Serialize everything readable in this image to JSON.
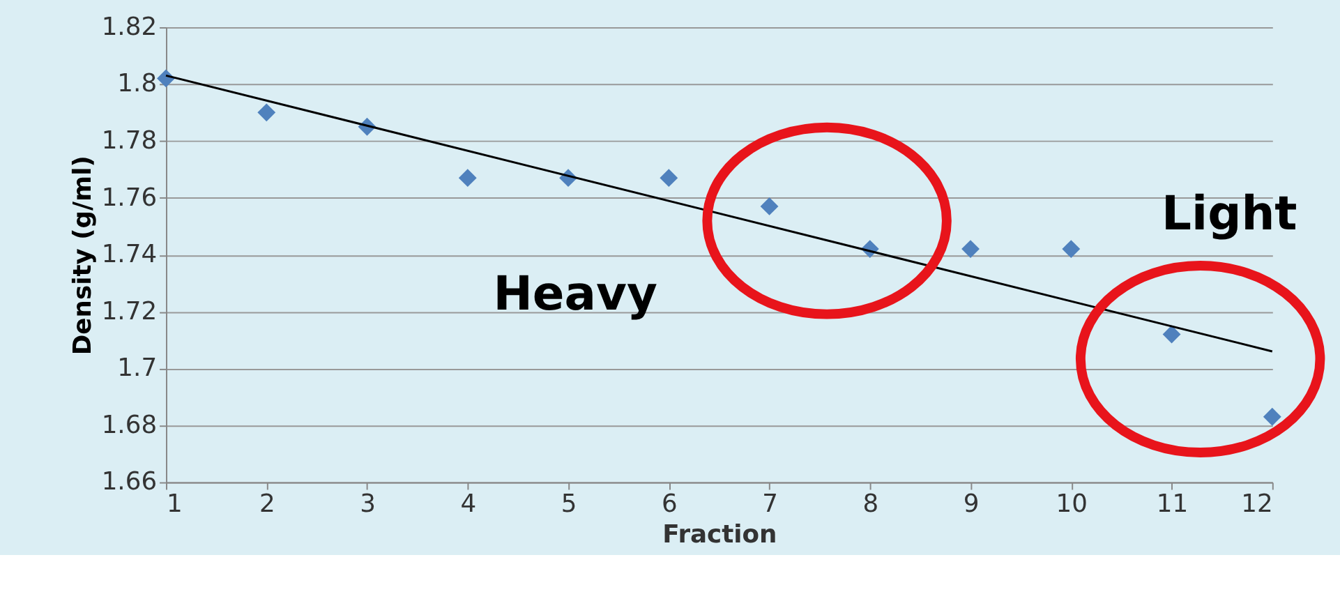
{
  "chart_data": {
    "type": "scatter",
    "xlabel": "Fraction",
    "ylabel": "Density (g/ml)",
    "x": [
      1,
      2,
      3,
      4,
      5,
      6,
      7,
      8,
      9,
      10,
      11,
      12
    ],
    "series": [
      {
        "color": "#4f81bd",
        "marker": "diamond",
        "values": [
          1.802,
          1.79,
          1.785,
          1.767,
          1.767,
          1.767,
          1.757,
          1.742,
          1.742,
          1.742,
          1.712,
          1.683
        ]
      },
      {
        "type": "line",
        "color": "#000000",
        "x": [
          1,
          12
        ],
        "values": [
          1.803,
          1.706
        ]
      }
    ],
    "xlim": [
      1,
      12
    ],
    "xticks": [
      1,
      2,
      3,
      4,
      5,
      6,
      7,
      8,
      9,
      10,
      11,
      12
    ],
    "ylim": [
      1.66,
      1.82
    ],
    "yticks": [
      1.66,
      1.68,
      1.7,
      1.72,
      1.74,
      1.76,
      1.78,
      1.8,
      1.82
    ],
    "grid": "y",
    "annotations": [
      "Heavy",
      "Light"
    ]
  }
}
